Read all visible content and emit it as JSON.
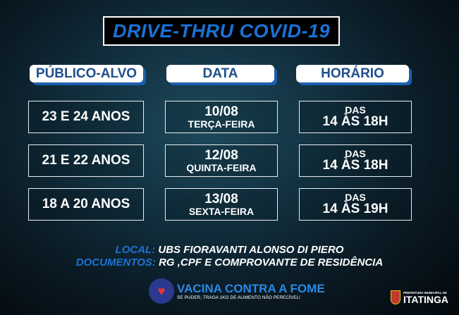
{
  "title": "DRIVE-THRU COVID-19",
  "headers": [
    "PÚBLICO-ALVO",
    "DATA",
    "HORÁRIO"
  ],
  "rows": [
    {
      "publico": "23 E 24 ANOS",
      "date": "10/08",
      "weekday": "TERÇA-FEIRA",
      "das": "DAS",
      "hours": "14 ÀS 18H"
    },
    {
      "publico": "21 E 22 ANOS",
      "date": "12/08",
      "weekday": "QUINTA-FEIRA",
      "das": "DAS",
      "hours": "14 ÀS 18H"
    },
    {
      "publico": "18 A 20 ANOS",
      "date": "13/08",
      "weekday": "SEXTA-FEIRA",
      "das": "DAS",
      "hours": "14 ÀS 19H"
    }
  ],
  "local": {
    "label": "LOCAL:",
    "value": "UBS FIORAVANTI ALONSO DI PIERO"
  },
  "documentos": {
    "label": "DOCUMENTOS:",
    "value": "RG ,CPF E COMPROVANTE DE RESIDÊNCIA"
  },
  "campaign": {
    "title": "VACINA CONTRA A FOME",
    "subtitle": "SE PUDER, TRAGA 1KG DE ALIMENTO NÃO PERECÍVEL!"
  },
  "prefeitura": {
    "line1": "PREFEITURA MUNICIPAL DE",
    "line2": "ITATINGA"
  },
  "colors": {
    "accent": "#1a72d6",
    "header_text": "#1e4f8c"
  }
}
